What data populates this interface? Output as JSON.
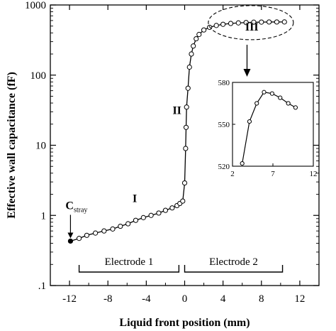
{
  "chart_data": {
    "type": "line",
    "title": "",
    "xlabel": "Liquid front position (mm)",
    "ylabel": "Effective wall capacitance (fF)",
    "xlim": [
      -14,
      14
    ],
    "ylim": [
      0.1,
      1000
    ],
    "yscale": "log",
    "grid": false,
    "x_ticks": [
      -12,
      -8,
      -4,
      0,
      4,
      8,
      12
    ],
    "x_tick_labels": [
      "-12",
      "-8",
      "-4",
      "0",
      "4",
      "8",
      "12"
    ],
    "y_ticks": [
      0.1,
      1,
      10,
      100,
      1000
    ],
    "y_tick_labels": [
      ".1",
      "1",
      "10",
      "100",
      "1000"
    ],
    "series": [
      {
        "marker": "open-circle",
        "x": [
          -11.9,
          -11,
          -10.2,
          -9.3,
          -8.4,
          -7.5,
          -6.7,
          -5.9,
          -5.1,
          -4.3,
          -3.5,
          -2.7,
          -2.0,
          -1.3,
          -0.8,
          -0.5,
          -0.2,
          0.0,
          0.1,
          0.15,
          0.2,
          0.35,
          0.5,
          0.7,
          0.9,
          1.2,
          1.5,
          2.0,
          2.6,
          3.3,
          4.0,
          4.8,
          5.6,
          6.4,
          7.2,
          8.0,
          8.8,
          9.6,
          10.4
        ],
        "y": [
          0.43,
          0.47,
          0.52,
          0.56,
          0.6,
          0.64,
          0.7,
          0.76,
          0.85,
          0.93,
          1.0,
          1.08,
          1.18,
          1.28,
          1.38,
          1.48,
          1.6,
          2.9,
          9.0,
          18,
          35,
          65,
          130,
          200,
          260,
          330,
          380,
          440,
          480,
          510,
          530,
          545,
          555,
          562,
          568,
          570,
          572,
          572,
          573
        ]
      }
    ],
    "point_annotations": [
      {
        "text": "C",
        "subscript": "stray",
        "x": -11.9,
        "y": 0.43
      }
    ],
    "region_labels": [
      {
        "text": "I",
        "x": -5.2,
        "y": 1.55
      },
      {
        "text": "II",
        "x": -0.8,
        "y": 28
      },
      {
        "text": "III",
        "x": 7.0,
        "y": 430
      }
    ],
    "electrodes": [
      {
        "label": "Electrode 1",
        "x_start": -11,
        "x_end": -0.6
      },
      {
        "label": "Electrode 2",
        "x_start": 0,
        "x_end": 10.2
      }
    ],
    "inset": {
      "type": "line",
      "xlim": [
        2,
        12
      ],
      "ylim": [
        520,
        580
      ],
      "x_ticks": [
        2,
        7,
        12
      ],
      "x_tick_labels": [
        "2",
        "7",
        "12"
      ],
      "y_ticks": [
        520,
        550,
        580
      ],
      "y_tick_labels": [
        "520",
        "550",
        "580"
      ],
      "x": [
        3.2,
        4.1,
        5.0,
        5.9,
        6.9,
        7.9,
        8.9,
        9.8
      ],
      "y": [
        522,
        552,
        565,
        573,
        572,
        569,
        565,
        562
      ]
    }
  }
}
